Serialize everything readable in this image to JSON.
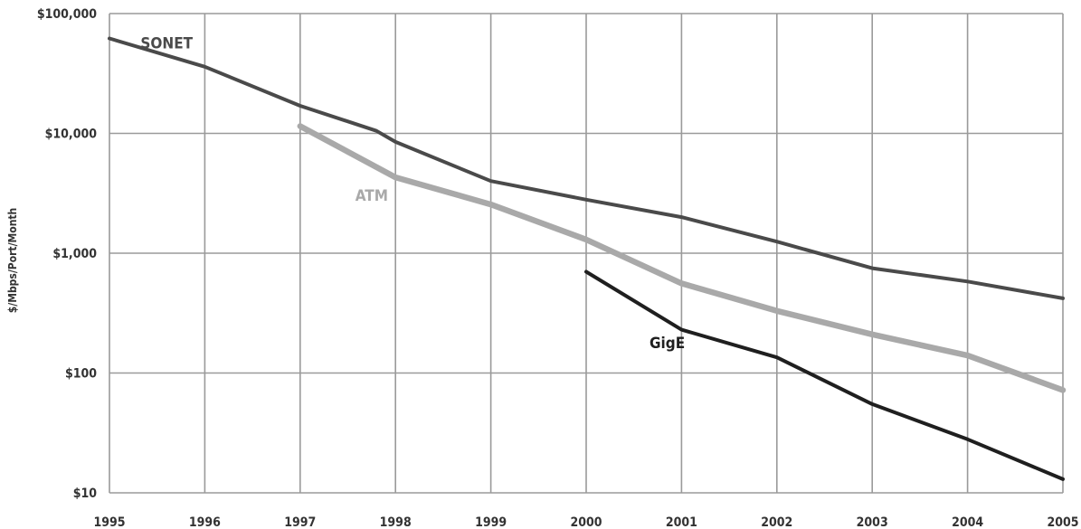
{
  "chart_data": {
    "type": "line",
    "title": "",
    "xlabel": "",
    "ylabel": "$/Mbps/Port/Month",
    "y_scale": "log",
    "ylim": [
      10,
      100000
    ],
    "xlim": [
      1995,
      2005
    ],
    "grid": true,
    "legend": "inline",
    "x_ticks": [
      "1995",
      "1996",
      "1997",
      "1998",
      "1999",
      "2000",
      "2001",
      "2002",
      "2003",
      "2004",
      "2005"
    ],
    "y_ticks": [
      {
        "value": 10,
        "label": "$10"
      },
      {
        "value": 100,
        "label": "$100"
      },
      {
        "value": 1000,
        "label": "$1,000"
      },
      {
        "value": 10000,
        "label": "$10,000"
      },
      {
        "value": 100000,
        "label": "$100,000"
      }
    ],
    "series": [
      {
        "name": "SONET",
        "color": "#4a4a4a",
        "x": [
          1995,
          1996,
          1997,
          1997.8,
          1998,
          1999,
          2000,
          2001,
          2002,
          2003,
          2004,
          2005
        ],
        "values": [
          62000,
          36000,
          17000,
          10500,
          8500,
          4000,
          2800,
          2000,
          1250,
          750,
          580,
          420
        ]
      },
      {
        "name": "ATM",
        "color": "#a9a9a9",
        "x": [
          1997,
          1998,
          1999,
          2000,
          2001,
          2002,
          2003,
          2004,
          2005
        ],
        "values": [
          11500,
          4300,
          2550,
          1300,
          560,
          330,
          210,
          140,
          72
        ]
      },
      {
        "name": "GigE",
        "color": "#1f1f1f",
        "x": [
          2000,
          2001,
          2002,
          2003,
          2004,
          2005
        ],
        "values": [
          700,
          230,
          135,
          55,
          28,
          13
        ]
      }
    ]
  }
}
